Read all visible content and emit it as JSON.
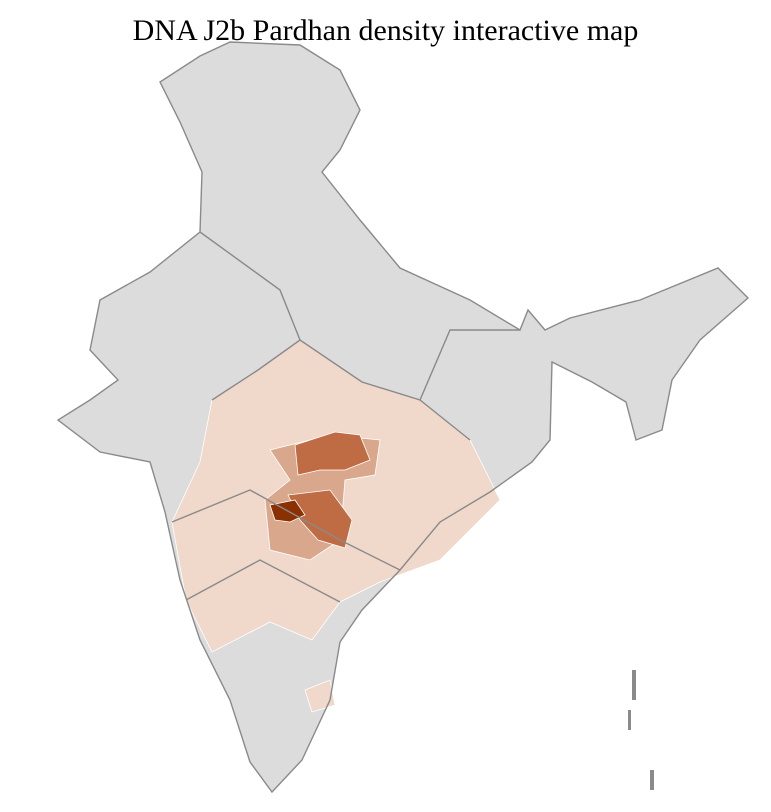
{
  "title": "DNA J2b Pardhan density interactive map",
  "colors": {
    "no_data": "#dcdcdc",
    "level_1": "#f0d8ca",
    "level_2": "#d9a88c",
    "level_3": "#bf6c45",
    "level_4": "#8b3000",
    "border_state": "#8a8a8a",
    "border_district": "#ffffff"
  }
}
